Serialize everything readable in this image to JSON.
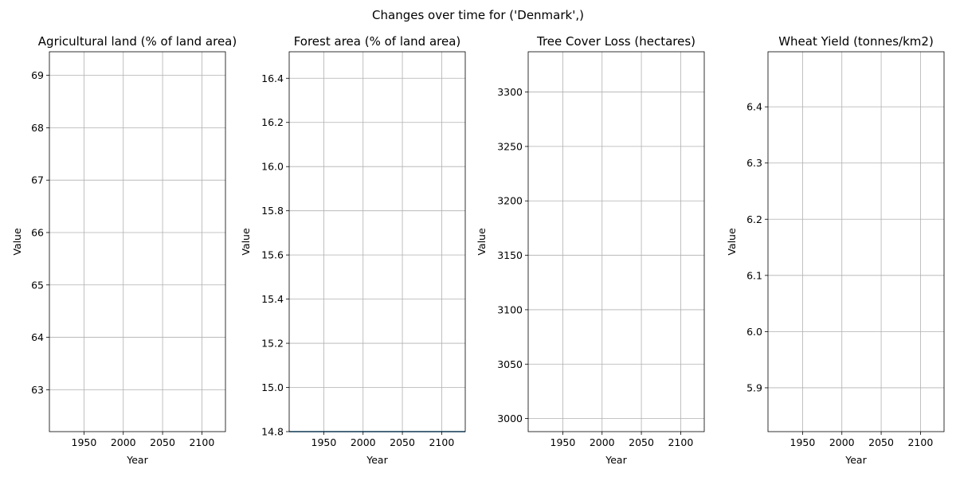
{
  "figure": {
    "suptitle": "Changes over time for ('Denmark',)"
  },
  "chart_data": [
    {
      "type": "line",
      "title": "Agricultural land (% of land area)",
      "xlabel": "Year",
      "ylabel": "Value",
      "xlim": [
        1906,
        2130
      ],
      "ylim": [
        62.2,
        69.45
      ],
      "xticks": [
        1950,
        2000,
        2050,
        2100
      ],
      "yticks": [
        63,
        64,
        65,
        66,
        67,
        68,
        69
      ],
      "ytick_labels": [
        "63",
        "64",
        "65",
        "66",
        "67",
        "68",
        "69"
      ],
      "grid": true,
      "series": []
    },
    {
      "type": "line",
      "title": "Forest area (% of land area)",
      "xlabel": "Year",
      "ylabel": "Value",
      "xlim": [
        1906,
        2130
      ],
      "ylim": [
        14.8,
        16.52
      ],
      "xticks": [
        1950,
        2000,
        2050,
        2100
      ],
      "yticks": [
        14.8,
        15.0,
        15.2,
        15.4,
        15.6,
        15.8,
        16.0,
        16.2,
        16.4
      ],
      "ytick_labels": [
        "14.8",
        "15.0",
        "15.2",
        "15.4",
        "15.6",
        "15.8",
        "16.0",
        "16.2",
        "16.4"
      ],
      "grid": true,
      "series": [
        {
          "values": [
            [
              1906,
              14.8
            ],
            [
              2130,
              14.8
            ]
          ],
          "color": "#1f77b4"
        }
      ]
    },
    {
      "type": "line",
      "title": "Tree Cover Loss (hectares)",
      "xlabel": "Year",
      "ylabel": "Value",
      "xlim": [
        1906,
        2130
      ],
      "ylim": [
        2988,
        3337
      ],
      "xticks": [
        1950,
        2000,
        2050,
        2100
      ],
      "yticks": [
        3000,
        3050,
        3100,
        3150,
        3200,
        3250,
        3300
      ],
      "ytick_labels": [
        "3000",
        "3050",
        "3100",
        "3150",
        "3200",
        "3250",
        "3300"
      ],
      "grid": true,
      "series": []
    },
    {
      "type": "line",
      "title": "Wheat Yield (tonnes/km2)",
      "xlabel": "Year",
      "ylabel": "Value",
      "xlim": [
        1906,
        2130
      ],
      "ylim": [
        5.822,
        6.498
      ],
      "xticks": [
        1950,
        2000,
        2050,
        2100
      ],
      "yticks": [
        5.9,
        6.0,
        6.1,
        6.2,
        6.3,
        6.4
      ],
      "ytick_labels": [
        "5.9",
        "6.0",
        "6.1",
        "6.2",
        "6.3",
        "6.4"
      ],
      "grid": true,
      "series": []
    }
  ]
}
